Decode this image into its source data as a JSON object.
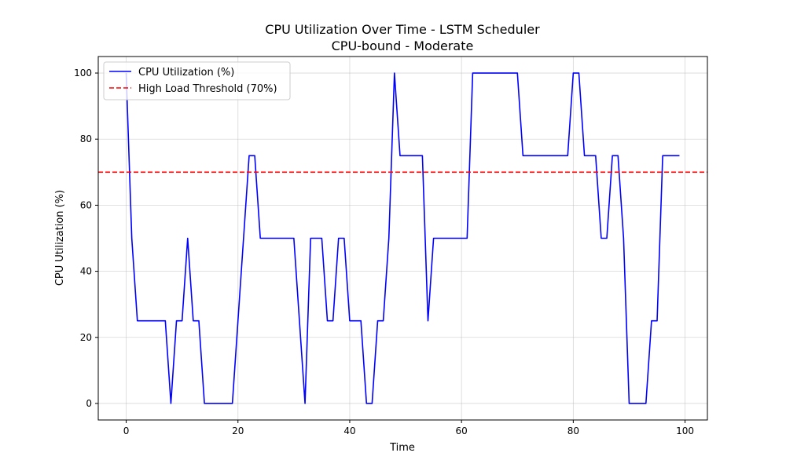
{
  "chart_data": {
    "type": "line",
    "title": "CPU Utilization Over Time - LSTM Scheduler",
    "subtitle": "CPU-bound - Moderate",
    "xlabel": "Time",
    "ylabel": "CPU Utilization (%)",
    "xlim": [
      -5,
      104
    ],
    "ylim": [
      -5,
      105
    ],
    "xticks": [
      0,
      20,
      40,
      60,
      80,
      100
    ],
    "yticks": [
      0,
      20,
      40,
      60,
      80,
      100
    ],
    "grid": true,
    "legend_position": "top-left",
    "series": [
      {
        "name": "CPU Utilization (%)",
        "color": "#0000ff",
        "line_style": "solid",
        "x": [
          0,
          1,
          2,
          3,
          4,
          5,
          6,
          7,
          8,
          9,
          10,
          11,
          12,
          13,
          14,
          15,
          16,
          17,
          18,
          19,
          20,
          21,
          22,
          23,
          24,
          25,
          26,
          27,
          28,
          29,
          30,
          31,
          32,
          33,
          34,
          35,
          36,
          37,
          38,
          39,
          40,
          41,
          42,
          43,
          44,
          45,
          46,
          47,
          48,
          49,
          50,
          51,
          52,
          53,
          54,
          55,
          56,
          57,
          58,
          59,
          60,
          61,
          62,
          63,
          64,
          65,
          66,
          67,
          68,
          69,
          70,
          71,
          72,
          73,
          74,
          75,
          76,
          77,
          78,
          79,
          80,
          81,
          82,
          83,
          84,
          85,
          86,
          87,
          88,
          89,
          90,
          91,
          92,
          93,
          94,
          95,
          96,
          97,
          98,
          99
        ],
        "values": [
          100,
          50,
          25,
          25,
          25,
          25,
          25,
          25,
          0,
          25,
          25,
          50,
          25,
          25,
          0,
          0,
          0,
          0,
          0,
          0,
          25,
          50,
          75,
          75,
          50,
          50,
          50,
          50,
          50,
          50,
          50,
          25,
          0,
          50,
          50,
          50,
          25,
          25,
          50,
          50,
          25,
          25,
          25,
          0,
          0,
          25,
          25,
          50,
          100,
          75,
          75,
          75,
          75,
          75,
          25,
          50,
          50,
          50,
          50,
          50,
          50,
          50,
          100,
          100,
          100,
          100,
          100,
          100,
          100,
          100,
          100,
          75,
          75,
          75,
          75,
          75,
          75,
          75,
          75,
          75,
          100,
          100,
          75,
          75,
          75,
          50,
          50,
          75,
          75,
          50,
          0,
          0,
          0,
          0,
          25,
          25,
          75,
          75,
          75,
          75
        ]
      },
      {
        "name": "High Load Threshold (70%)",
        "color": "#ff0000",
        "line_style": "dashed",
        "y": 70
      }
    ]
  }
}
